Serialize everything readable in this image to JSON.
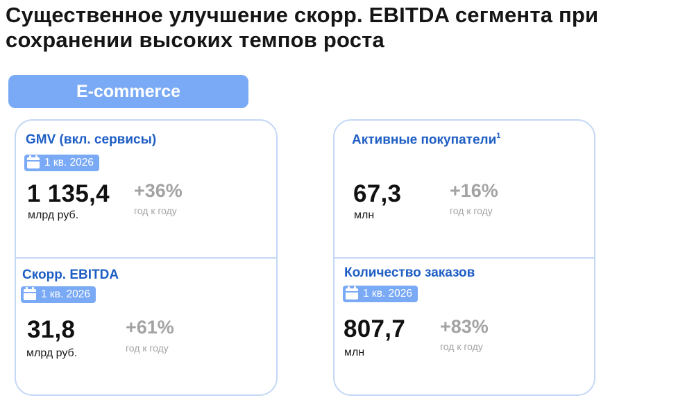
{
  "title": {
    "line1": "Существенное улучшение скорр. EBITDA сегмента при",
    "line2": "сохранении высоких темпов роста"
  },
  "segment_label": "E-commerce",
  "metrics": {
    "gmv": {
      "title": "GMV (вкл. сервисы)",
      "period": "1 кв. 2026",
      "value": "1 135,4",
      "unit": "млрд руб.",
      "growth": "+36%",
      "growth_note": "год к году"
    },
    "ebitda": {
      "title": "Скорр. EBITDA",
      "period": "1 кв. 2026",
      "value": "31,8",
      "unit": "млрд руб.",
      "growth": "+61%",
      "growth_note": "год к году"
    },
    "buyers": {
      "title": "Активные покупатели",
      "footnote": "1",
      "value": "67,3",
      "unit": "млн",
      "growth": "+16%",
      "growth_note": "год к году"
    },
    "orders": {
      "title": "Количество заказов",
      "period": "1 кв. 2026",
      "value": "807,7",
      "unit": "млн",
      "growth": "+83%",
      "growth_note": "год к году"
    }
  },
  "colors": {
    "accent": "#7aaaf5",
    "title_blue": "#1e5ec4",
    "card_border": "#c4d7f5",
    "growth_gray": "#a3a3a3"
  },
  "icons": {
    "period_badge": "calendar-icon"
  }
}
